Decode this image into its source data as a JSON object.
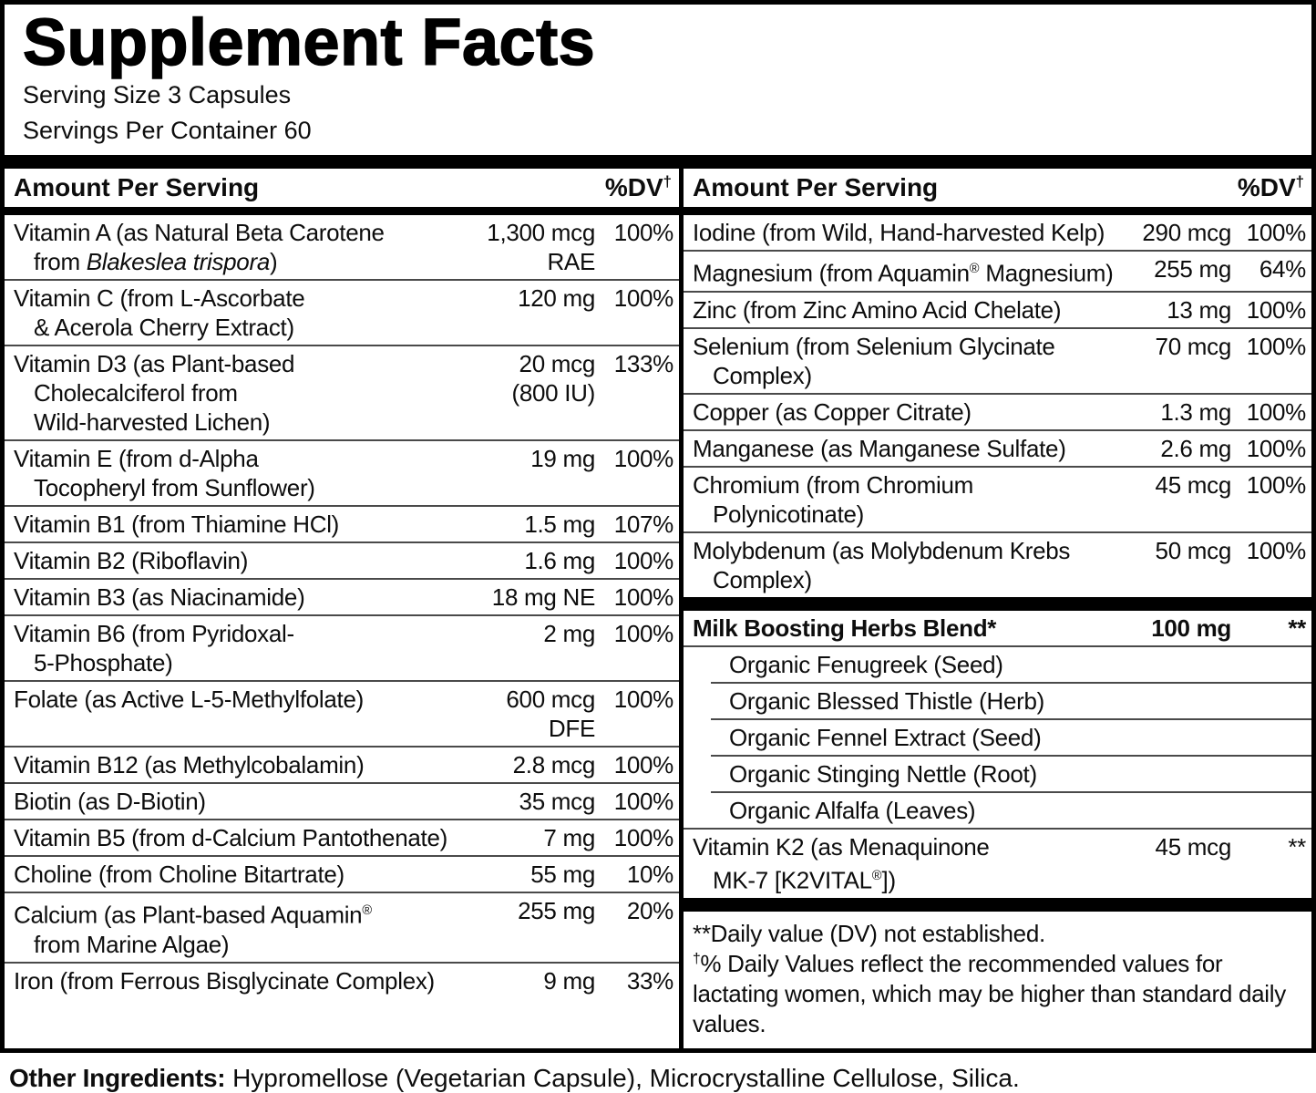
{
  "title": "Supplement Facts",
  "serving_size": "Serving Size 3 Capsules",
  "servings_per_container": "Servings Per Container 60",
  "column_header": {
    "amount_label": "Amount Per Serving",
    "dv_label": "%DV",
    "dv_dagger": "†"
  },
  "colors": {
    "ink": "#000000",
    "paper": "#ffffff",
    "separator": "#4a4a4a"
  },
  "left_table": {
    "rows": [
      {
        "name": [
          [
            "Vitamin A (as Natural Beta Carotene"
          ],
          [
            "from ",
            {
              "t": "Blakeslea trispora",
              "s": "i"
            },
            ")"
          ]
        ],
        "amount": [
          "1,300 mcg",
          "RAE"
        ],
        "dv": "100%"
      },
      {
        "name": [
          [
            "Vitamin C (from L-Ascorbate"
          ],
          [
            "& Acerola Cherry Extract)"
          ]
        ],
        "amount": [
          "120 mg"
        ],
        "dv": "100%"
      },
      {
        "name": [
          [
            "Vitamin D3 (as Plant-based"
          ],
          [
            "Cholecalciferol from"
          ],
          [
            "Wild-harvested Lichen)"
          ]
        ],
        "amount": [
          "20 mcg",
          "(800 IU)"
        ],
        "dv": "133%"
      },
      {
        "name": [
          [
            "Vitamin E (from d-Alpha"
          ],
          [
            "Tocopheryl from Sunflower)"
          ]
        ],
        "amount": [
          "19 mg"
        ],
        "dv": "100%"
      },
      {
        "name": [
          [
            "Vitamin B1 (from Thiamine HCl)"
          ]
        ],
        "amount": [
          "1.5 mg"
        ],
        "dv": "107%"
      },
      {
        "name": [
          [
            "Vitamin B2 (Riboflavin)"
          ]
        ],
        "amount": [
          "1.6 mg"
        ],
        "dv": "100%"
      },
      {
        "name": [
          [
            "Vitamin B3 (as Niacinamide)"
          ]
        ],
        "amount": [
          "18 mg NE"
        ],
        "dv": "100%"
      },
      {
        "name": [
          [
            "Vitamin B6 (from Pyridoxal-"
          ],
          [
            "5-Phosphate)"
          ]
        ],
        "amount": [
          "2 mg"
        ],
        "dv": "100%"
      },
      {
        "name": [
          [
            "Folate (as Active L-5-Methylfolate)"
          ]
        ],
        "amount": [
          "600 mcg",
          "DFE"
        ],
        "dv": "100%"
      },
      {
        "name": [
          [
            "Vitamin B12 (as Methylcobalamin)"
          ]
        ],
        "amount": [
          "2.8 mcg"
        ],
        "dv": "100%"
      },
      {
        "name": [
          [
            "Biotin (as D-Biotin)"
          ]
        ],
        "amount": [
          "35 mcg"
        ],
        "dv": "100%"
      },
      {
        "name": [
          [
            "Vitamin B5 (from d-Calcium Pantothenate)"
          ]
        ],
        "amount": [
          "7 mg"
        ],
        "dv": "100%"
      },
      {
        "name": [
          [
            "Choline (from Choline Bitartrate)"
          ]
        ],
        "amount": [
          "55 mg"
        ],
        "dv": "10%"
      },
      {
        "name": [
          [
            "Calcium (as Plant-based Aquamin",
            {
              "t": "®",
              "s": "r"
            }
          ],
          [
            "from Marine Algae)"
          ]
        ],
        "amount": [
          "255 mg"
        ],
        "dv": "20%"
      },
      {
        "name": [
          [
            "Iron (from Ferrous Bisglycinate Complex)"
          ]
        ],
        "amount": [
          "9 mg"
        ],
        "dv": "33%"
      }
    ]
  },
  "right_table": {
    "minerals": {
      "rows": [
        {
          "name": [
            [
              "Iodine (from Wild, Hand-harvested Kelp)"
            ]
          ],
          "amount": [
            "290 mcg"
          ],
          "dv": "100%"
        },
        {
          "name": [
            [
              "Magnesium (from Aquamin",
              {
                "t": "®",
                "s": "r"
              },
              " Magnesium)"
            ]
          ],
          "amount": [
            "255 mg"
          ],
          "dv": "64%"
        },
        {
          "name": [
            [
              "Zinc (from Zinc Amino Acid Chelate)"
            ]
          ],
          "amount": [
            "13 mg"
          ],
          "dv": "100%"
        },
        {
          "name": [
            [
              "Selenium (from Selenium Glycinate"
            ],
            [
              "Complex)"
            ]
          ],
          "amount": [
            "70 mcg"
          ],
          "dv": "100%"
        },
        {
          "name": [
            [
              "Copper (as Copper Citrate)"
            ]
          ],
          "amount": [
            "1.3 mg"
          ],
          "dv": "100%"
        },
        {
          "name": [
            [
              "Manganese (as Manganese Sulfate)"
            ]
          ],
          "amount": [
            "2.6 mg"
          ],
          "dv": "100%"
        },
        {
          "name": [
            [
              "Chromium (from Chromium"
            ],
            [
              "Polynicotinate)"
            ]
          ],
          "amount": [
            "45 mcg"
          ],
          "dv": "100%"
        },
        {
          "name": [
            [
              "Molybdenum (as Molybdenum Krebs"
            ],
            [
              "Complex)"
            ]
          ],
          "amount": [
            "50 mcg"
          ],
          "dv": "100%"
        }
      ]
    },
    "blend": {
      "rows": [
        {
          "name": [
            [
              "Milk Boosting Herbs Blend*"
            ]
          ],
          "amount": [
            "100 mg"
          ],
          "dv": "**",
          "bold": true
        },
        {
          "name": [
            [
              "Organic Fenugreek (Seed)"
            ]
          ],
          "amount": [],
          "dv": "",
          "sub": true
        },
        {
          "name": [
            [
              "Organic Blessed Thistle (Herb)"
            ]
          ],
          "amount": [],
          "dv": "",
          "sub": true
        },
        {
          "name": [
            [
              "Organic Fennel Extract (Seed)"
            ]
          ],
          "amount": [],
          "dv": "",
          "sub": true
        },
        {
          "name": [
            [
              "Organic Stinging Nettle (Root)"
            ]
          ],
          "amount": [],
          "dv": "",
          "sub": true
        },
        {
          "name": [
            [
              "Organic Alfalfa (Leaves)"
            ]
          ],
          "amount": [],
          "dv": "",
          "sub": true
        },
        {
          "name": [
            [
              "Vitamin K2 (as Menaquinone"
            ],
            [
              "MK-7 [K2VITAL",
              {
                "t": "®",
                "s": "r"
              },
              "])"
            ]
          ],
          "amount": [
            "45 mcg"
          ],
          "dv": "**"
        }
      ]
    }
  },
  "footnotes": {
    "not_established": "**Daily value (DV) not established.",
    "dagger": "†",
    "dv_note": "% Daily Values reflect the recommended values for lactating women, which may be higher than standard daily values."
  },
  "other_ingredients": {
    "label": "Other Ingredients:",
    "text": "Hypromellose (Vegetarian Capsule), Microcrystalline Cellulose, Silica."
  }
}
